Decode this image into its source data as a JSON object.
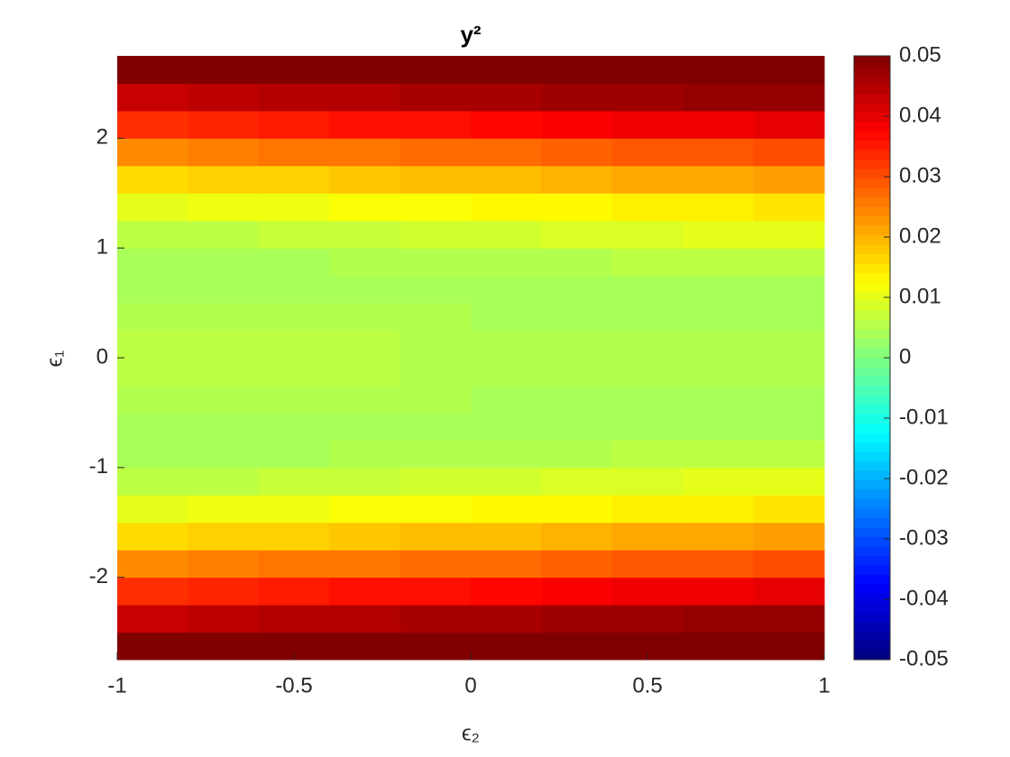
{
  "chart_data": {
    "type": "heatmap",
    "title": "y²",
    "xlabel": "ϵ₂",
    "ylabel": "ϵ₁",
    "xlim": [
      -1,
      1
    ],
    "ylim": [
      -2.75,
      2.75
    ],
    "xticks": [
      -1,
      -0.5,
      0,
      0.5,
      1
    ],
    "yticks": [
      -2,
      -1,
      0,
      1,
      2
    ],
    "colormap": "jet",
    "clim": [
      -0.05,
      0.05
    ],
    "cticks": [
      -0.05,
      -0.04,
      -0.03,
      -0.02,
      -0.01,
      0,
      0.01,
      0.02,
      0.03,
      0.04,
      0.05
    ],
    "x": [
      -0.9,
      -0.7,
      -0.5,
      -0.3,
      -0.1,
      0.1,
      0.3,
      0.5,
      0.7,
      0.9
    ],
    "y": [
      -2.625,
      -2.375,
      -2.125,
      -1.875,
      -1.625,
      -1.375,
      -1.125,
      -0.875,
      -0.625,
      -0.375,
      -0.125,
      0.125,
      0.375,
      0.625,
      0.875,
      1.125,
      1.375,
      1.625,
      1.875,
      2.125,
      2.375,
      2.625
    ],
    "z": [
      [
        0.05,
        0.05,
        0.05,
        0.05,
        0.05,
        0.05,
        0.05,
        0.05,
        0.05,
        0.05
      ],
      [
        0.043,
        0.044,
        0.045,
        0.045,
        0.046,
        0.046,
        0.047,
        0.047,
        0.048,
        0.048
      ],
      [
        0.033,
        0.034,
        0.035,
        0.036,
        0.036,
        0.037,
        0.038,
        0.039,
        0.039,
        0.04
      ],
      [
        0.024,
        0.025,
        0.026,
        0.026,
        0.027,
        0.027,
        0.028,
        0.029,
        0.029,
        0.03
      ],
      [
        0.016,
        0.017,
        0.017,
        0.018,
        0.019,
        0.019,
        0.02,
        0.021,
        0.021,
        0.022
      ],
      [
        0.01,
        0.011,
        0.011,
        0.012,
        0.012,
        0.013,
        0.013,
        0.014,
        0.014,
        0.015
      ],
      [
        0.006,
        0.006,
        0.007,
        0.007,
        0.008,
        0.008,
        0.009,
        0.009,
        0.01,
        0.01
      ],
      [
        0.004,
        0.004,
        0.004,
        0.005,
        0.005,
        0.005,
        0.005,
        0.006,
        0.006,
        0.006
      ],
      [
        0.004,
        0.004,
        0.004,
        0.004,
        0.004,
        0.004,
        0.004,
        0.004,
        0.004,
        0.004
      ],
      [
        0.005,
        0.005,
        0.005,
        0.005,
        0.005,
        0.004,
        0.004,
        0.004,
        0.004,
        0.004
      ],
      [
        0.006,
        0.006,
        0.006,
        0.006,
        0.005,
        0.005,
        0.005,
        0.005,
        0.005,
        0.005
      ],
      [
        0.006,
        0.006,
        0.006,
        0.006,
        0.005,
        0.005,
        0.005,
        0.005,
        0.005,
        0.005
      ],
      [
        0.005,
        0.005,
        0.005,
        0.005,
        0.005,
        0.004,
        0.004,
        0.004,
        0.004,
        0.004
      ],
      [
        0.004,
        0.004,
        0.004,
        0.004,
        0.004,
        0.004,
        0.004,
        0.004,
        0.004,
        0.004
      ],
      [
        0.004,
        0.004,
        0.004,
        0.005,
        0.005,
        0.005,
        0.005,
        0.006,
        0.006,
        0.006
      ],
      [
        0.006,
        0.006,
        0.007,
        0.007,
        0.008,
        0.008,
        0.009,
        0.009,
        0.01,
        0.01
      ],
      [
        0.01,
        0.011,
        0.011,
        0.012,
        0.012,
        0.013,
        0.013,
        0.014,
        0.014,
        0.015
      ],
      [
        0.016,
        0.017,
        0.017,
        0.018,
        0.019,
        0.019,
        0.02,
        0.021,
        0.021,
        0.022
      ],
      [
        0.024,
        0.025,
        0.026,
        0.026,
        0.027,
        0.027,
        0.028,
        0.029,
        0.029,
        0.03
      ],
      [
        0.033,
        0.034,
        0.035,
        0.036,
        0.036,
        0.037,
        0.038,
        0.039,
        0.039,
        0.04
      ],
      [
        0.043,
        0.044,
        0.045,
        0.045,
        0.046,
        0.046,
        0.047,
        0.047,
        0.048,
        0.048
      ],
      [
        0.05,
        0.05,
        0.05,
        0.05,
        0.05,
        0.05,
        0.05,
        0.05,
        0.05,
        0.05
      ]
    ]
  }
}
